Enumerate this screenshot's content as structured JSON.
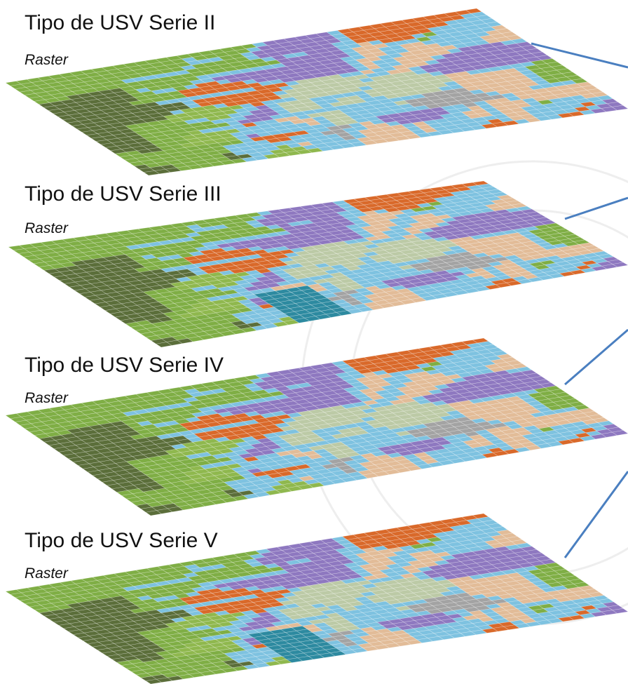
{
  "layers": [
    {
      "title": "Tipo de USV Serie II",
      "subtitle": "Raster"
    },
    {
      "title": "Tipo de USV Serie III",
      "subtitle": "Raster"
    },
    {
      "title": "Tipo de USV Serie IV",
      "subtitle": "Raster"
    },
    {
      "title": "Tipo de USV Serie V",
      "subtitle": "Raster"
    }
  ]
}
